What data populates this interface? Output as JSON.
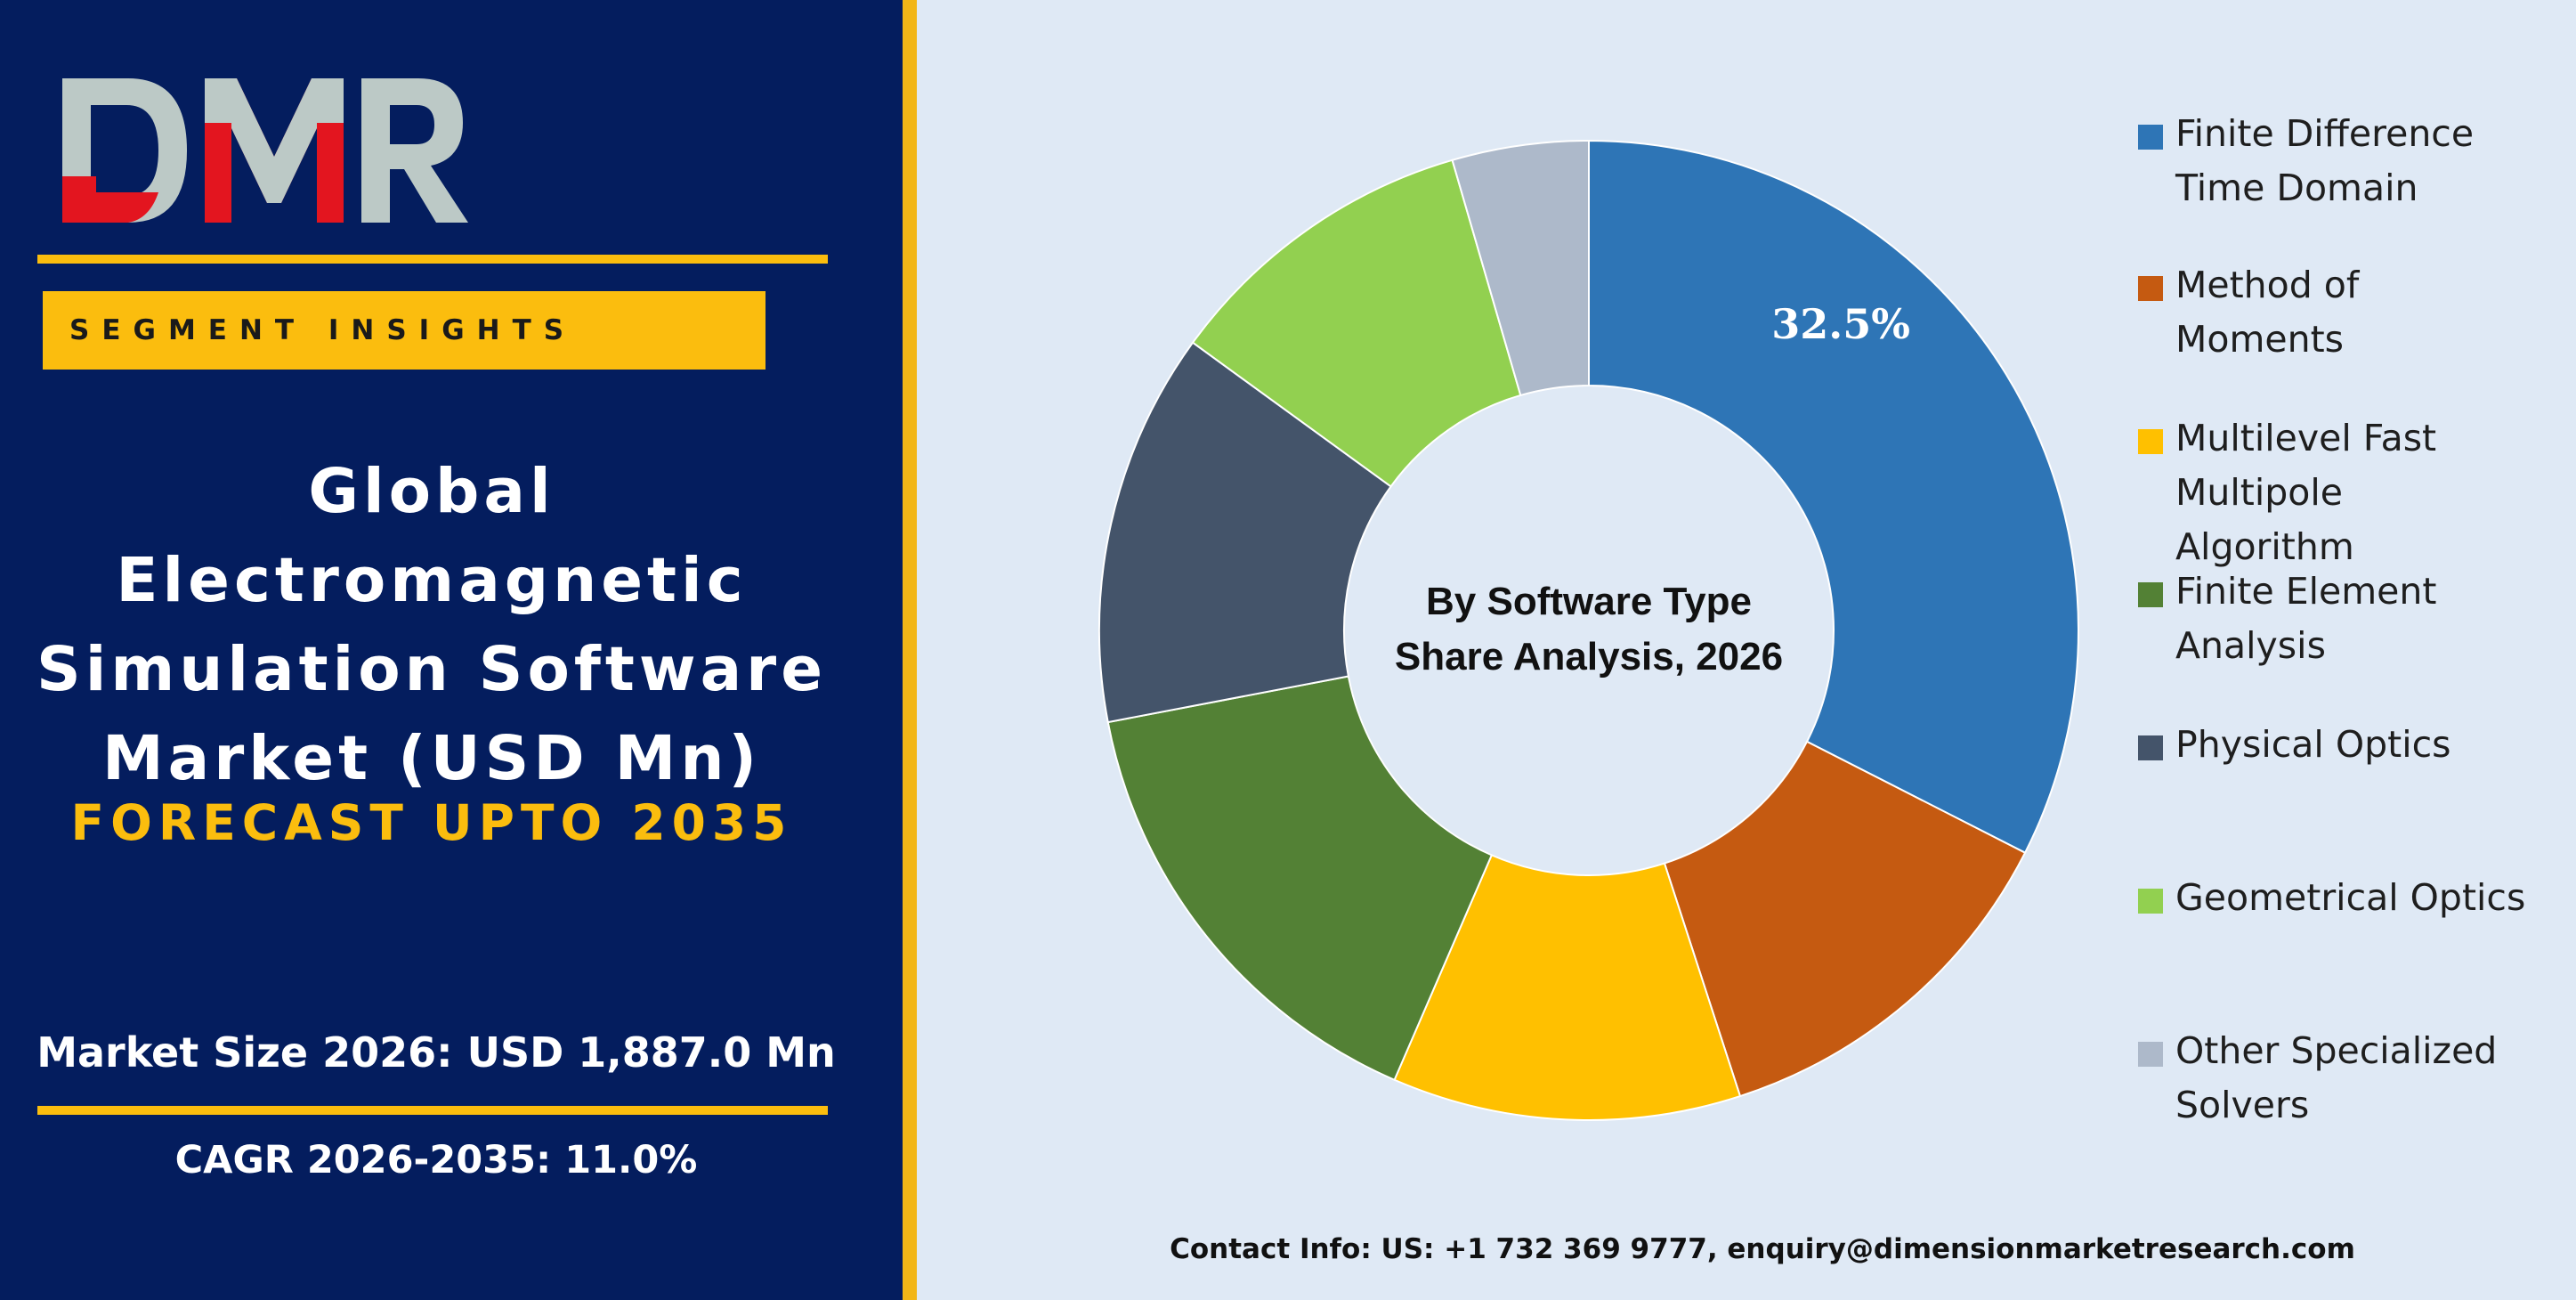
{
  "brand": {
    "logo_text": "DMR",
    "colors": {
      "navy": "#041d5e",
      "gold": "#fbbd0e",
      "logo_gray": "#bcc9c6",
      "logo_red": "#e3151f"
    }
  },
  "sidebar": {
    "segment_label": "SEGMENT INSIGHTS",
    "title_lines": [
      "Global",
      "Electromagnetic",
      "Simulation Software",
      "Market (USD Mn)"
    ],
    "forecast": "FORECAST UPTO 2035",
    "market_size": "Market Size 2026: USD 1,887.0 Mn",
    "cagr": "CAGR 2026-2035: 11.0%"
  },
  "chart_data": {
    "type": "pie",
    "donut": true,
    "center_title_lines": [
      "By Software Type",
      "Share Analysis, 2026"
    ],
    "categories": [
      "Finite Difference Time Domain",
      "Method of Moments",
      "Multilevel Fast Multipole Algorithm",
      "Finite Element Analysis",
      "Physical Optics",
      "Geometrical Optics",
      "Other Specialized Solvers"
    ],
    "legend_lines": [
      [
        "Finite Difference",
        "Time Domain"
      ],
      [
        "Method of",
        "Moments"
      ],
      [
        "Multilevel Fast",
        "Multipole",
        "Algorithm"
      ],
      [
        "Finite Element",
        "Analysis"
      ],
      [
        "Physical Optics"
      ],
      [
        "Geometrical Optics"
      ],
      [
        "Other Specialized",
        "Solvers"
      ]
    ],
    "values": [
      32.5,
      12.5,
      11.5,
      15.5,
      13.0,
      10.5,
      4.5
    ],
    "colors": [
      "#2e75b6",
      "#c55a11",
      "#ffc000",
      "#538135",
      "#44546a",
      "#92d050",
      "#adb9ca"
    ],
    "data_labels": [
      "32.5%",
      "",
      "",
      "",
      "",
      "",
      ""
    ],
    "legend_position": "right"
  },
  "footer": {
    "contact": "Contact Info: US: +1 732 369 9777, enquiry@dimensionmarketresearch.com"
  }
}
